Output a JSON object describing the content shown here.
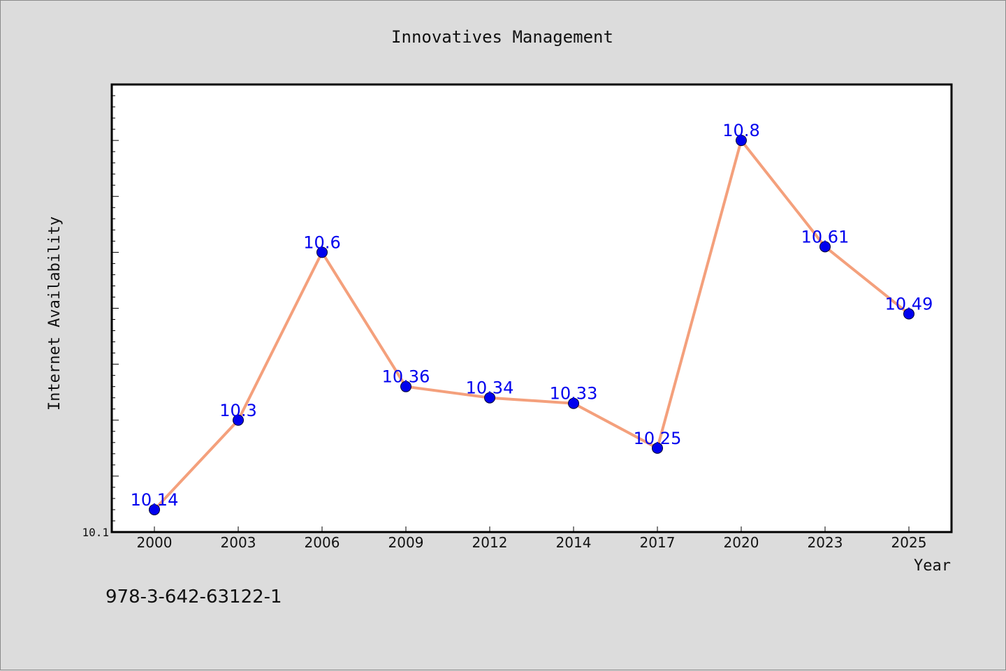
{
  "footer": {
    "isbn": "978-3-642-63122-1"
  },
  "colors": {
    "line": "#f4a07c",
    "marker": "#0000ee",
    "label": "#0000ee",
    "background": "#dcdcdc",
    "plot_area": "#ffffff"
  },
  "chart_data": {
    "type": "line",
    "title": "Innovatives Management",
    "xlabel": "Year",
    "ylabel": "Internet Availability",
    "categories": [
      "2000",
      "2003",
      "2006",
      "2009",
      "2012",
      "2014",
      "2017",
      "2020",
      "2023",
      "2025"
    ],
    "series": [
      {
        "values": [
          10.14,
          10.3,
          10.6,
          10.36,
          10.34,
          10.33,
          10.25,
          10.8,
          10.61,
          10.49
        ]
      }
    ],
    "data_labels": [
      "10.14",
      "10.3",
      "10.6",
      "10.36",
      "10.34",
      "10.33",
      "10.25",
      "10.8",
      "10.61",
      "10.49"
    ],
    "ylim": [
      10.1,
      10.9
    ],
    "ytick_labels": [
      "10.1"
    ],
    "grid": false,
    "legend": "none"
  }
}
